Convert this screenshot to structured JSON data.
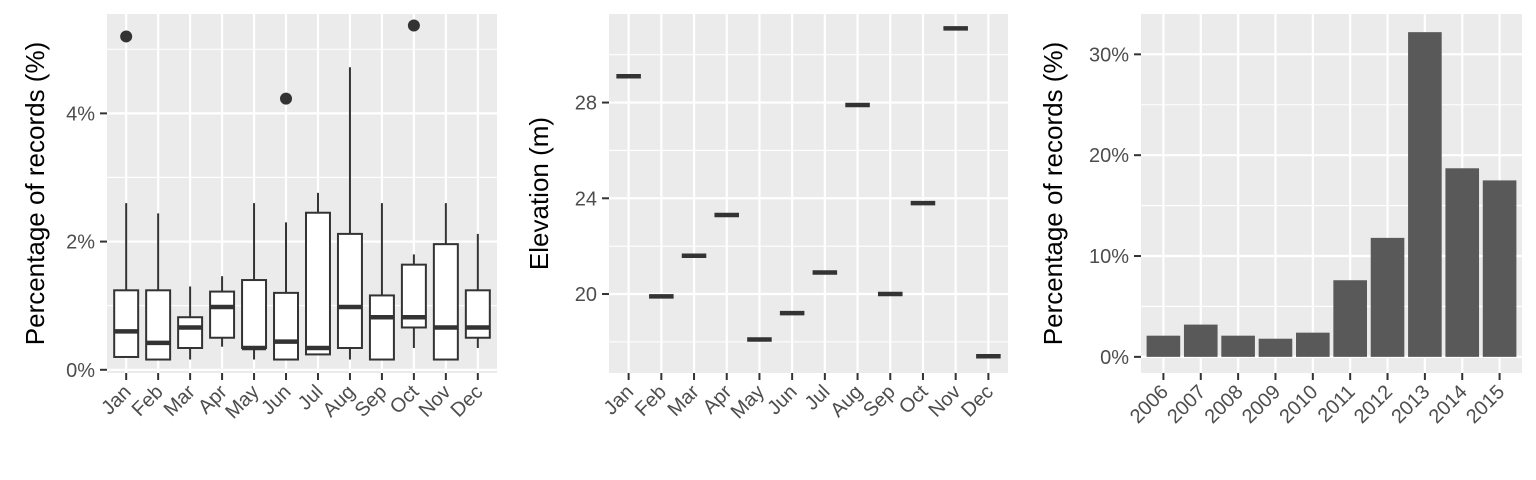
{
  "colors": {
    "panel_bg": "#ebebeb",
    "grid_major": "#ffffff",
    "box_fill": "#ffffff",
    "box_line": "#333333",
    "bar_fill": "#595959",
    "tick_text": "#4d4d4d"
  },
  "chart_data": [
    {
      "type": "boxplot",
      "title": "",
      "xlabel": "",
      "ylabel": "Percentage of records (%)",
      "ylim": [
        -0.0005,
        0.0555
      ],
      "yticks": [
        0,
        0.02,
        0.04
      ],
      "yticklabels": [
        "0%",
        "2%",
        "4%"
      ],
      "grid": true,
      "categories": [
        "Jan",
        "Feb",
        "Mar",
        "Apr",
        "May",
        "Jun",
        "Jul",
        "Aug",
        "Sep",
        "Oct",
        "Nov",
        "Dec"
      ],
      "boxes": [
        {
          "lower_whisker": 0.002,
          "q1": 0.002,
          "median": 0.006,
          "q3": 0.0124,
          "upper_whisker": 0.026,
          "outliers": [
            0.052
          ]
        },
        {
          "lower_whisker": 0.0016,
          "q1": 0.0016,
          "median": 0.0042,
          "q3": 0.0124,
          "upper_whisker": 0.0244,
          "outliers": []
        },
        {
          "lower_whisker": 0.0016,
          "q1": 0.0034,
          "median": 0.0066,
          "q3": 0.0082,
          "upper_whisker": 0.013,
          "outliers": []
        },
        {
          "lower_whisker": 0.0036,
          "q1": 0.005,
          "median": 0.0098,
          "q3": 0.0122,
          "upper_whisker": 0.0146,
          "outliers": []
        },
        {
          "lower_whisker": 0.0016,
          "q1": 0.0034,
          "median": 0.0034,
          "q3": 0.014,
          "upper_whisker": 0.026,
          "outliers": []
        },
        {
          "lower_whisker": 0.0016,
          "q1": 0.0016,
          "median": 0.0044,
          "q3": 0.012,
          "upper_whisker": 0.023,
          "outliers": [
            0.0423
          ]
        },
        {
          "lower_whisker": 0.0024,
          "q1": 0.0024,
          "median": 0.0034,
          "q3": 0.0245,
          "upper_whisker": 0.0276,
          "outliers": []
        },
        {
          "lower_whisker": 0.0016,
          "q1": 0.0034,
          "median": 0.0098,
          "q3": 0.0212,
          "upper_whisker": 0.0472,
          "outliers": []
        },
        {
          "lower_whisker": 0.0016,
          "q1": 0.0016,
          "median": 0.0082,
          "q3": 0.0116,
          "upper_whisker": 0.026,
          "outliers": []
        },
        {
          "lower_whisker": 0.0034,
          "q1": 0.0066,
          "median": 0.0082,
          "q3": 0.0164,
          "upper_whisker": 0.018,
          "outliers": [
            0.0537
          ]
        },
        {
          "lower_whisker": 0.0016,
          "q1": 0.0016,
          "median": 0.0066,
          "q3": 0.0196,
          "upper_whisker": 0.026,
          "outliers": []
        },
        {
          "lower_whisker": 0.0034,
          "q1": 0.005,
          "median": 0.0066,
          "q3": 0.0124,
          "upper_whisker": 0.0212,
          "outliers": []
        }
      ]
    },
    {
      "type": "boxplot",
      "title": "",
      "xlabel": "",
      "ylabel": "Elevation (m)",
      "ylim": [
        16.7,
        31.7
      ],
      "yticks": [
        20,
        24,
        28
      ],
      "yticklabels": [
        "20",
        "24",
        "28"
      ],
      "grid": true,
      "categories": [
        "Jan",
        "Feb",
        "Mar",
        "Apr",
        "May",
        "Jun",
        "Jul",
        "Aug",
        "Sep",
        "Oct",
        "Nov",
        "Dec"
      ],
      "values": [
        29.1,
        19.9,
        21.6,
        23.3,
        18.1,
        19.2,
        20.9,
        27.9,
        20.0,
        23.8,
        31.1,
        17.4
      ]
    },
    {
      "type": "bar",
      "title": "",
      "xlabel": "",
      "ylabel": "Percentage of records (%)",
      "ylim": [
        -0.016,
        0.34
      ],
      "yticks": [
        0,
        0.1,
        0.2,
        0.3
      ],
      "yticklabels": [
        "0%",
        "10%",
        "20%",
        "30%"
      ],
      "grid": true,
      "categories": [
        "2006",
        "2007",
        "2008",
        "2009",
        "2010",
        "2011",
        "2012",
        "2013",
        "2014",
        "2015"
      ],
      "values": [
        0.021,
        0.032,
        0.021,
        0.018,
        0.024,
        0.076,
        0.118,
        0.322,
        0.187,
        0.175
      ]
    }
  ]
}
